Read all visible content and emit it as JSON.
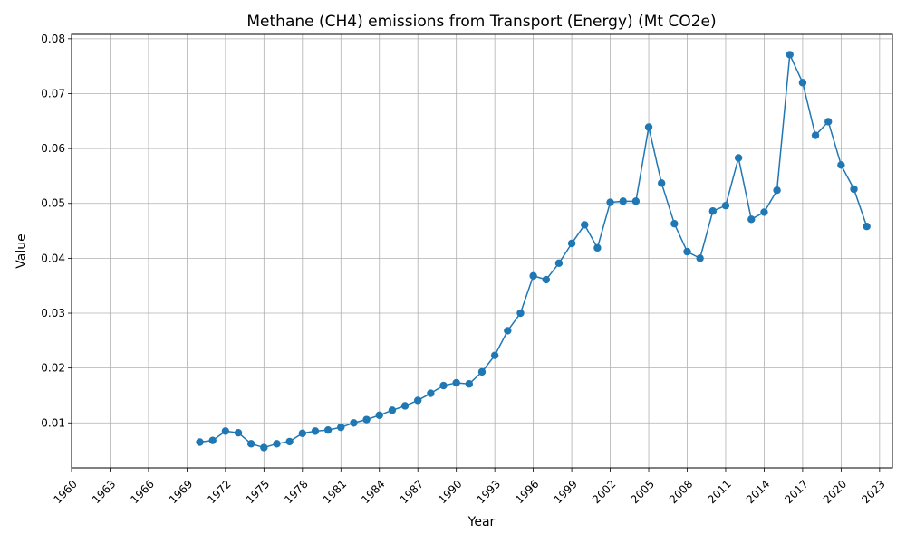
{
  "chart_data": {
    "type": "line",
    "title": "Methane (CH4) emissions from Transport (Energy) (Mt CO2e)",
    "xlabel": "Year",
    "ylabel": "Value",
    "xlim": [
      1960,
      2024
    ],
    "ylim": [
      0.0018,
      0.0808
    ],
    "x_ticks": [
      1960,
      1963,
      1966,
      1969,
      1972,
      1975,
      1978,
      1981,
      1984,
      1987,
      1990,
      1993,
      1996,
      1999,
      2002,
      2005,
      2008,
      2011,
      2014,
      2017,
      2020,
      2023
    ],
    "y_ticks": [
      0.01,
      0.02,
      0.03,
      0.04,
      0.05,
      0.06,
      0.07,
      0.08
    ],
    "y_tick_labels": [
      "0.01",
      "0.02",
      "0.03",
      "0.04",
      "0.05",
      "0.06",
      "0.07",
      "0.08"
    ],
    "grid": true,
    "marker": "circle",
    "line_color": "#1f77b4",
    "series": [
      {
        "x": [
          1970,
          1971,
          1972,
          1973,
          1974,
          1975,
          1976,
          1977,
          1978,
          1979,
          1980,
          1981,
          1982,
          1983,
          1984,
          1985,
          1986,
          1987,
          1988,
          1989,
          1990,
          1991,
          1992,
          1993,
          1994,
          1995,
          1996,
          1997,
          1998,
          1999,
          2000,
          2001,
          2002,
          2003,
          2004,
          2005,
          2006,
          2007,
          2008,
          2009,
          2010,
          2011,
          2012,
          2013,
          2014,
          2015,
          2016,
          2017,
          2018,
          2019,
          2020,
          2021,
          2022
        ],
        "values": [
          0.0065,
          0.0068,
          0.0085,
          0.0082,
          0.0062,
          0.0055,
          0.0062,
          0.0066,
          0.0081,
          0.0085,
          0.0087,
          0.0092,
          0.01,
          0.0106,
          0.0114,
          0.0123,
          0.0131,
          0.0141,
          0.0154,
          0.0168,
          0.0173,
          0.0171,
          0.0193,
          0.0223,
          0.0268,
          0.03,
          0.0368,
          0.0361,
          0.0391,
          0.0427,
          0.0461,
          0.0419,
          0.0502,
          0.0504,
          0.0504,
          0.0639,
          0.0537,
          0.0463,
          0.0412,
          0.04,
          0.0486,
          0.0496,
          0.0583,
          0.0471,
          0.0484,
          0.0524,
          0.0771,
          0.072,
          0.0624,
          0.0649,
          0.057,
          0.0526,
          0.0458
        ]
      }
    ]
  }
}
